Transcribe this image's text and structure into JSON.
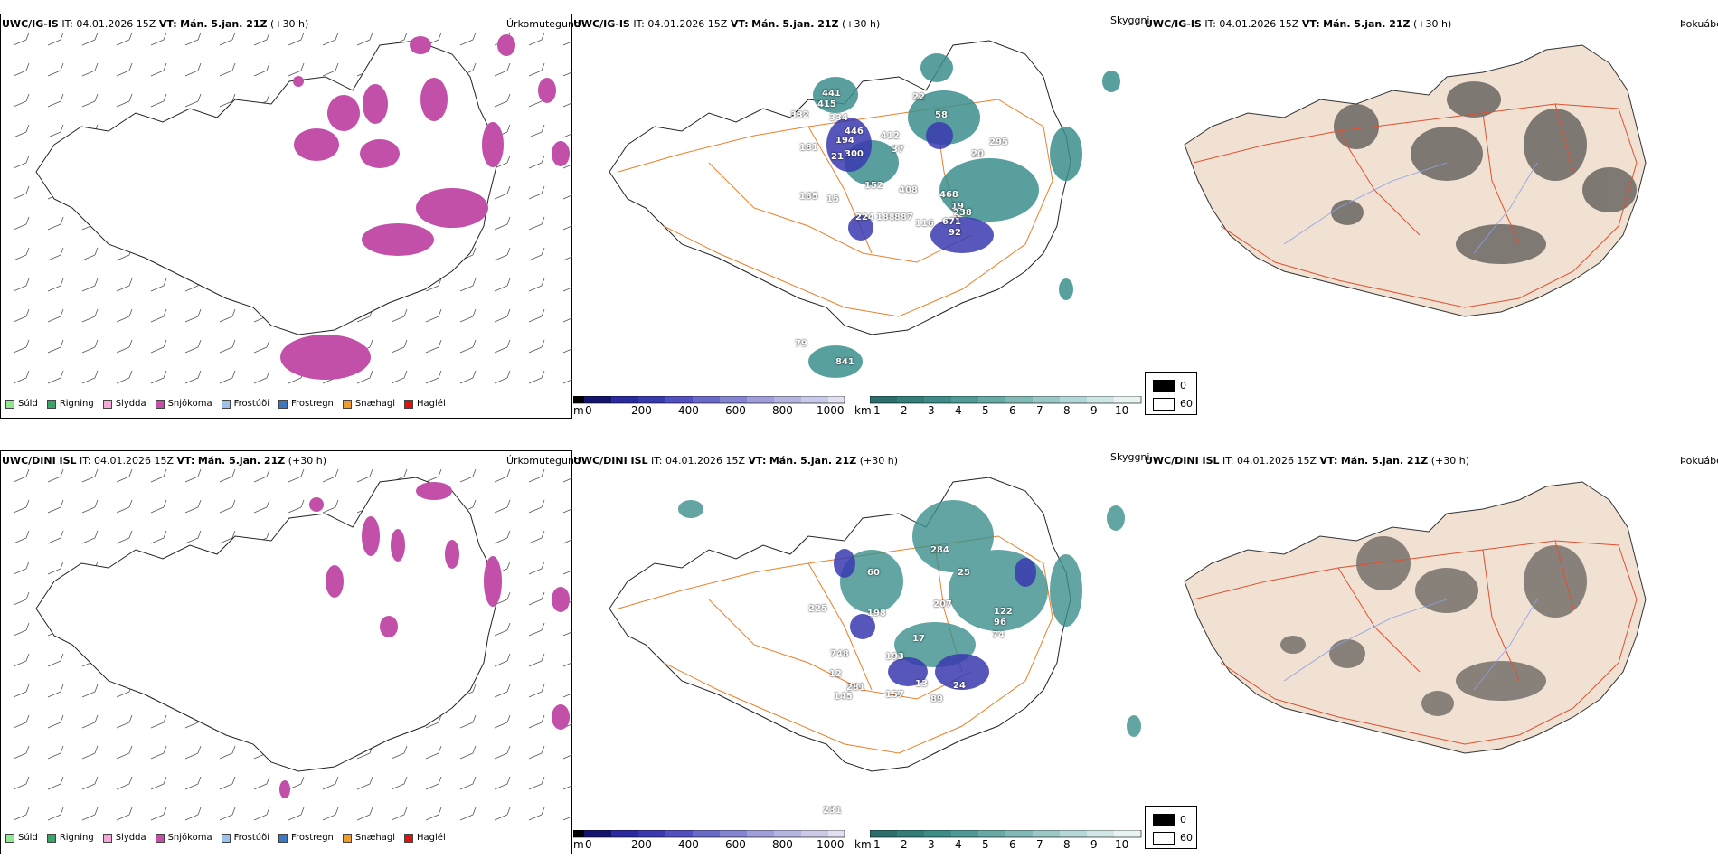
{
  "rows": [
    {
      "model": "UWC/IG-IS",
      "it_label": "IT:",
      "it_value": "04.01.2026 15Z",
      "vt_label": "VT:",
      "vt_value": "Mán. 5.jan. 21Z",
      "lead": "(+30 h)",
      "titles": {
        "precip_type": "Úrkomutegund",
        "cloud": "Skyggni",
        "fog": "Þokuábendi"
      },
      "height_labels": [
        "441",
        "415",
        "334",
        "332",
        "446",
        "181",
        "194",
        "21",
        "300",
        "412",
        "37",
        "22",
        "58",
        "19",
        "152",
        "408",
        "468",
        "671",
        "238",
        "185",
        "15",
        "224",
        "188",
        "887",
        "116",
        "92",
        "295",
        "20",
        "79",
        "841"
      ],
      "legend": [
        "Súld",
        "Rigning",
        "Slydda",
        "Snjókoma",
        "Frostúði",
        "Frostregn",
        "Snæhagl",
        "Haglél"
      ]
    },
    {
      "model": "UWC/DINI ISL",
      "it_label": "IT:",
      "it_value": "04.01.2026 15Z",
      "vt_label": "VT:",
      "vt_value": "Mán. 5.jan. 21Z",
      "lead": "(+30 h)",
      "titles": {
        "precip_type": "Úrkomutegund",
        "cloud": "Skyggni",
        "fog": "Þokuábendi"
      },
      "height_labels": [
        "284",
        "60",
        "225",
        "198",
        "207",
        "25",
        "122",
        "96",
        "74",
        "748",
        "193",
        "17",
        "12",
        "281",
        "145",
        "157",
        "89",
        "13",
        "24",
        "231"
      ],
      "legend": [
        "Súld",
        "Rigning",
        "Slydda",
        "Snjókoma",
        "Frostúði",
        "Frostregn",
        "Snæhagl",
        "Haglél"
      ]
    }
  ],
  "colorbars": {
    "height_unit": "m",
    "height_ticks": [
      "0",
      "200",
      "400",
      "600",
      "800",
      "1000"
    ],
    "vis_unit": "km",
    "vis_ticks": [
      "1",
      "2",
      "3",
      "4",
      "5",
      "6",
      "7",
      "8",
      "9",
      "10"
    ],
    "fog_ticks": [
      "0",
      "60"
    ]
  },
  "colors": {
    "legend": [
      "#8ee88e",
      "#3aa36a",
      "#f3a8d8",
      "#c24fa8",
      "#9cc2ec",
      "#3a78c0",
      "#ef9a2a",
      "#e01010"
    ],
    "snow": "#c24fa8",
    "teal": "#3b8f8c",
    "blue_low": "#3a3ab0",
    "road": "#e8802a",
    "land": "#f0e1d2",
    "road_red": "#e05030"
  }
}
